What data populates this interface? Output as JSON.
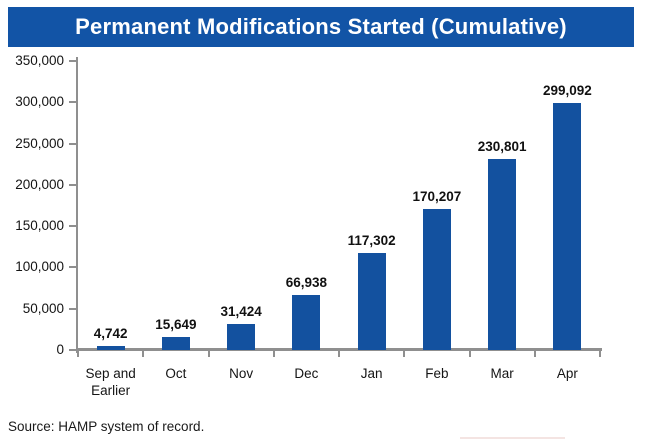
{
  "title_banner": {
    "text": "Permanent Modifications Started (Cumulative)",
    "bg_color": "#1254A6",
    "text_color": "#FFFFFF"
  },
  "chart_data": {
    "type": "bar",
    "title": "Permanent Modifications Started (Cumulative)",
    "categories": [
      "Sep and Earlier",
      "Oct",
      "Nov",
      "Dec",
      "Jan",
      "Feb",
      "Mar",
      "Apr"
    ],
    "category_display": [
      "Sep and\nEarlier",
      "Oct",
      "Nov",
      "Dec",
      "Jan",
      "Feb",
      "Mar",
      "Apr"
    ],
    "values": [
      4742,
      15649,
      31424,
      66938,
      117302,
      170207,
      230801,
      299092
    ],
    "value_labels": [
      "4,742",
      "15,649",
      "31,424",
      "66,938",
      "117,302",
      "170,207",
      "230,801",
      "299,092"
    ],
    "xlabel": "",
    "ylabel": "",
    "ylim": [
      0,
      350000
    ],
    "ytick_step": 50000,
    "ytick_labels": [
      "0",
      "50,000",
      "100,000",
      "150,000",
      "200,000",
      "250,000",
      "300,000",
      "350,000"
    ],
    "bar_color": "#13519F",
    "axis_color": "#8F8F8F",
    "grid": false,
    "legend": false
  },
  "footer": {
    "source_text": "Source: HAMP system of record."
  }
}
